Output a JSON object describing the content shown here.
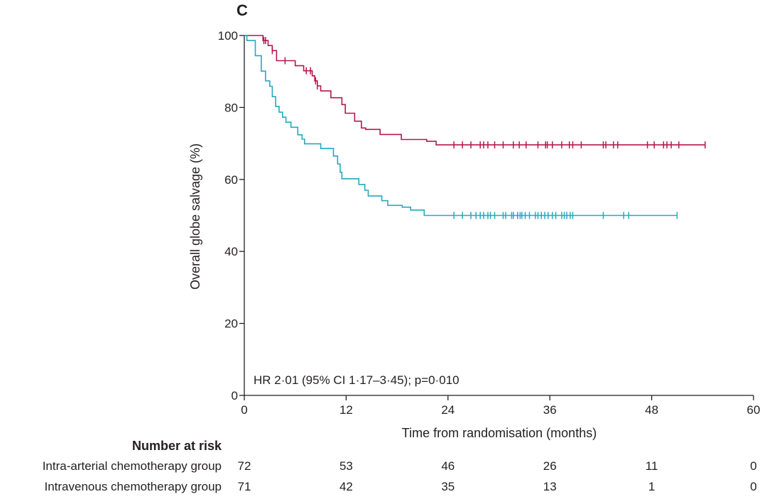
{
  "chart_data": {
    "type": "line",
    "subtype": "kaplan-meier",
    "panel_label": "C",
    "xlabel": "Time from randomisation (months)",
    "ylabel": "Overall globe salvage (%)",
    "xlim": [
      0,
      60
    ],
    "ylim": [
      0,
      100
    ],
    "xticks": [
      0,
      12,
      24,
      36,
      48,
      60
    ],
    "yticks": [
      0,
      20,
      40,
      60,
      80,
      100
    ],
    "grid": false,
    "annotation": "HR 2·01 (95% CI 1·17–3·45); p=0·010",
    "series": [
      {
        "name": "Intra-arterial chemotherapy group",
        "color": "#b5174a",
        "steps": [
          [
            0,
            100
          ],
          [
            2.2,
            100
          ],
          [
            2.2,
            98.6
          ],
          [
            2.8,
            98.6
          ],
          [
            2.8,
            97.2
          ],
          [
            3.3,
            97.2
          ],
          [
            3.3,
            95.8
          ],
          [
            3.8,
            95.8
          ],
          [
            3.8,
            93
          ],
          [
            6,
            93
          ],
          [
            6,
            91.6
          ],
          [
            7,
            91.6
          ],
          [
            7,
            90.2
          ],
          [
            8,
            90.2
          ],
          [
            8,
            88.8
          ],
          [
            8.3,
            88.8
          ],
          [
            8.3,
            87.4
          ],
          [
            8.6,
            87.4
          ],
          [
            8.6,
            86
          ],
          [
            9,
            86
          ],
          [
            9,
            84.6
          ],
          [
            10.2,
            84.6
          ],
          [
            10.2,
            82.7
          ],
          [
            11.5,
            82.7
          ],
          [
            11.5,
            80.8
          ],
          [
            11.9,
            80.8
          ],
          [
            11.9,
            78.4
          ],
          [
            13,
            78.4
          ],
          [
            13,
            76.2
          ],
          [
            13.8,
            76.2
          ],
          [
            13.8,
            74.3
          ],
          [
            14.3,
            74.3
          ],
          [
            14.3,
            73.9
          ],
          [
            16,
            73.9
          ],
          [
            16,
            72.5
          ],
          [
            18.5,
            72.5
          ],
          [
            18.5,
            71.1
          ],
          [
            21.5,
            71.1
          ],
          [
            21.5,
            70.6
          ],
          [
            22.6,
            70.6
          ],
          [
            22.6,
            69.6
          ],
          [
            54.3,
            69.6
          ]
        ],
        "censor_times": [
          2.3,
          2.5,
          3.3,
          4.8,
          7.3,
          7.8,
          8.4,
          8.6,
          24.7,
          25.7,
          26.7,
          27.8,
          28.2,
          28.7,
          29.5,
          30.5,
          31.7,
          32.4,
          33.2,
          34.6,
          35.5,
          35.7,
          36.3,
          37.4,
          38.3,
          38.7,
          39.7,
          42.3,
          42.6,
          43.5,
          44.0,
          47.5,
          48.3,
          49.4,
          49.8,
          50.3,
          51.2,
          54.3
        ],
        "risk_counts": [
          72,
          53,
          46,
          26,
          11,
          0
        ]
      },
      {
        "name": "Intravenous chemotherapy group",
        "color": "#26a8c0",
        "steps": [
          [
            0,
            100
          ],
          [
            0.3,
            100
          ],
          [
            0.3,
            98.6
          ],
          [
            1.3,
            98.6
          ],
          [
            1.3,
            94.4
          ],
          [
            2,
            94.4
          ],
          [
            2,
            90.1
          ],
          [
            2.5,
            90.1
          ],
          [
            2.5,
            87.4
          ],
          [
            3,
            87.4
          ],
          [
            3,
            85.9
          ],
          [
            3.3,
            85.9
          ],
          [
            3.3,
            83
          ],
          [
            3.7,
            83
          ],
          [
            3.7,
            80.3
          ],
          [
            4.1,
            80.3
          ],
          [
            4.1,
            78.7
          ],
          [
            4.5,
            78.7
          ],
          [
            4.5,
            77.3
          ],
          [
            4.9,
            77.3
          ],
          [
            4.9,
            75.9
          ],
          [
            5.5,
            75.9
          ],
          [
            5.5,
            74.5
          ],
          [
            6.3,
            74.5
          ],
          [
            6.3,
            72.4
          ],
          [
            6.8,
            72.4
          ],
          [
            6.8,
            71.2
          ],
          [
            7.1,
            71.2
          ],
          [
            7.1,
            69.9
          ],
          [
            9,
            69.9
          ],
          [
            9,
            68.6
          ],
          [
            10.5,
            68.6
          ],
          [
            10.5,
            66.5
          ],
          [
            11,
            66.5
          ],
          [
            11,
            64.3
          ],
          [
            11.3,
            64.3
          ],
          [
            11.3,
            62
          ],
          [
            11.5,
            62
          ],
          [
            11.5,
            60.2
          ],
          [
            13.5,
            60.2
          ],
          [
            13.5,
            58.6
          ],
          [
            14.2,
            58.6
          ],
          [
            14.2,
            57
          ],
          [
            14.6,
            57
          ],
          [
            14.6,
            55.4
          ],
          [
            16.2,
            55.4
          ],
          [
            16.2,
            54.1
          ],
          [
            16.9,
            54.1
          ],
          [
            16.9,
            52.8
          ],
          [
            18.6,
            52.8
          ],
          [
            18.6,
            52.3
          ],
          [
            19.6,
            52.3
          ],
          [
            19.6,
            51.5
          ],
          [
            21.2,
            51.5
          ],
          [
            21.2,
            50
          ],
          [
            51
          ],
          [
            51,
            50
          ]
        ],
        "censor_times": [
          24.7,
          25.7,
          26.7,
          27.3,
          27.8,
          28.2,
          28.7,
          29.0,
          29.5,
          30.5,
          30.8,
          31.5,
          31.7,
          32.2,
          32.5,
          32.7,
          33.1,
          33.6,
          34.3,
          34.6,
          35.0,
          35.4,
          35.8,
          36.3,
          36.7,
          37.4,
          37.7,
          38.0,
          38.4,
          38.7,
          42.3,
          44.7,
          45.3,
          51.0
        ],
        "risk_counts": [
          71,
          42,
          35,
          13,
          1,
          0
        ]
      }
    ],
    "number_at_risk": {
      "title": "Number at risk",
      "times": [
        0,
        12,
        24,
        36,
        48,
        60
      ]
    }
  }
}
